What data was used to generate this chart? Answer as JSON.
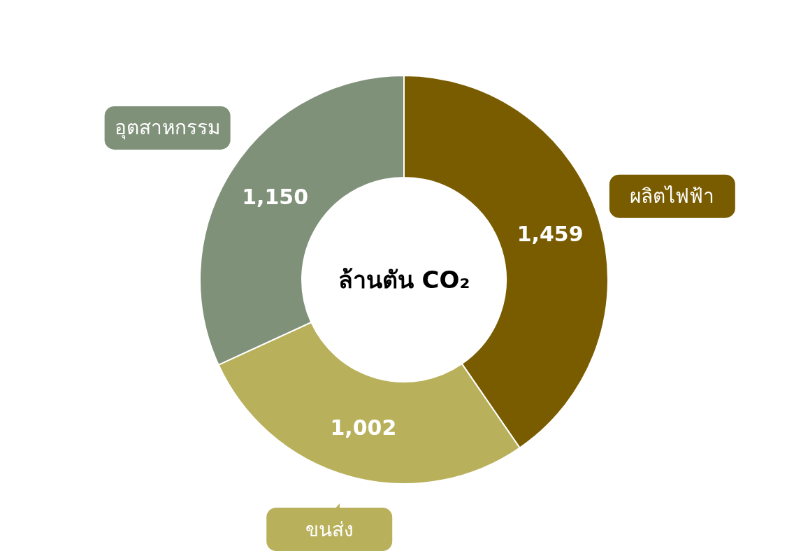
{
  "chart_data": {
    "type": "donut",
    "title": "ล้านตัน CO₂",
    "categories": [
      "ผลิตไฟฟ้า",
      "ขนส่ง",
      "อุตสาหกรรม"
    ],
    "values": [
      1459,
      1002,
      1150
    ],
    "colors": [
      "#7a5c00",
      "#b8b05a",
      "#80917a"
    ],
    "value_labels": [
      "1,459",
      "1,002",
      "1,150"
    ]
  }
}
